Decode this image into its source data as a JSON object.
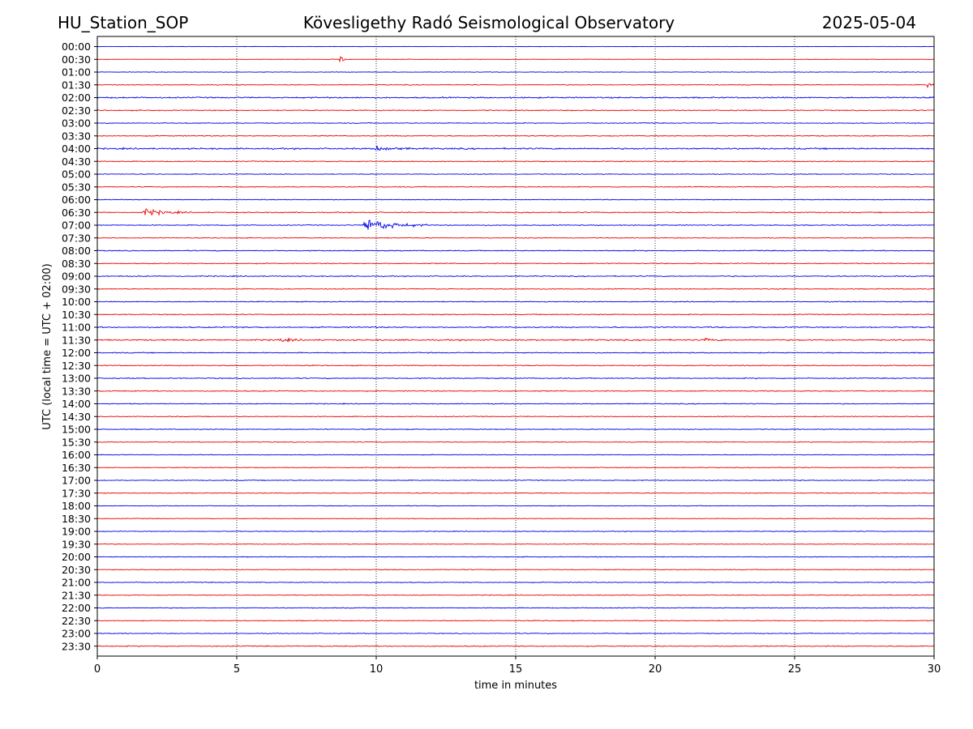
{
  "header": {
    "station": "HU_Station_SOP",
    "title": "Köveslig­ethy Radó Seismological Observatory",
    "date": "2025-05-04"
  },
  "chart_data": {
    "type": "line",
    "xlabel": "time in minutes",
    "ylabel": "UTC (local time = UTC + 02:00)",
    "xlim": [
      0,
      30
    ],
    "xticks": [
      "0",
      "5",
      "10",
      "15",
      "20",
      "25",
      "30"
    ],
    "vertical_gridlines_at": [
      5,
      10,
      15,
      20,
      25
    ],
    "grid": "dotted vertical",
    "row_labels": [
      "00:00",
      "00:30",
      "01:00",
      "01:30",
      "02:00",
      "02:30",
      "03:00",
      "03:30",
      "04:00",
      "04:30",
      "05:00",
      "05:30",
      "06:00",
      "06:30",
      "07:00",
      "07:30",
      "08:00",
      "08:30",
      "09:00",
      "09:30",
      "10:00",
      "10:30",
      "11:00",
      "11:30",
      "12:00",
      "12:30",
      "13:00",
      "13:30",
      "14:00",
      "14:30",
      "15:00",
      "15:30",
      "16:00",
      "16:30",
      "17:00",
      "17:30",
      "18:00",
      "18:30",
      "19:00",
      "19:30",
      "20:00",
      "20:30",
      "21:00",
      "21:30",
      "22:00",
      "22:30",
      "23:00",
      "23:30"
    ],
    "trace_colors": [
      "#0000ee",
      "#ee0000"
    ],
    "noise_levels": [
      0.25,
      0.3,
      0.35,
      0.45,
      0.8,
      0.6,
      0.5,
      0.55,
      0.9,
      0.55,
      0.45,
      0.5,
      0.45,
      0.6,
      0.55,
      0.45,
      0.6,
      0.6,
      0.6,
      0.55,
      0.55,
      0.55,
      0.75,
      0.85,
      0.6,
      0.55,
      0.6,
      0.6,
      0.55,
      0.5,
      0.5,
      0.45,
      0.45,
      0.45,
      0.5,
      0.45,
      0.4,
      0.4,
      0.45,
      0.4,
      0.45,
      0.4,
      0.5,
      0.45,
      0.5,
      0.5,
      0.5,
      0.6
    ],
    "events": [
      {
        "row": "00:30",
        "minute": 8.7,
        "amplitude": 7,
        "duration_min": 0.4
      },
      {
        "row": "01:30",
        "minute": 29.8,
        "amplitude": 9,
        "duration_min": 0.3
      },
      {
        "row": "04:00",
        "minute": 10.0,
        "amplitude": 5,
        "duration_min": 1.5
      },
      {
        "row": "06:30",
        "minute": 1.7,
        "amplitude": 7,
        "duration_min": 1.8
      },
      {
        "row": "07:00",
        "minute": 9.6,
        "amplitude": 15,
        "duration_min": 2.5
      },
      {
        "row": "11:30",
        "minute": 6.5,
        "amplitude": 3,
        "duration_min": 1.5
      },
      {
        "row": "11:30",
        "minute": 21.8,
        "amplitude": 3,
        "duration_min": 0.8
      }
    ]
  }
}
